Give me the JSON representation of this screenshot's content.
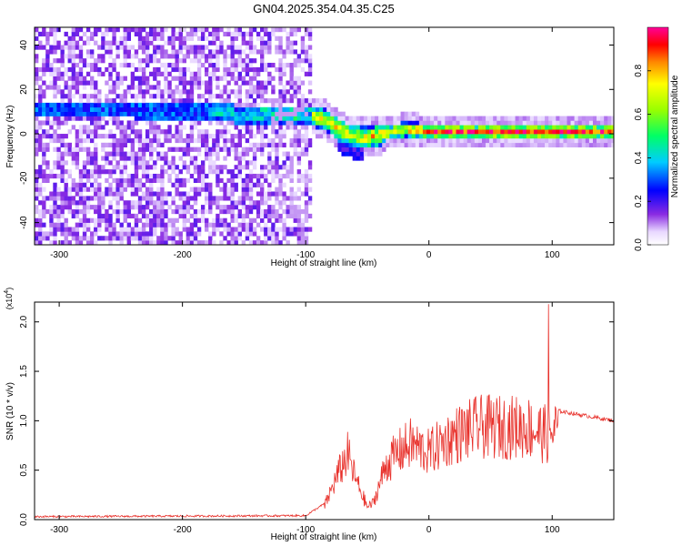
{
  "title": "GN04.2025.354.04.35.C25",
  "chart_data": [
    {
      "type": "heatmap",
      "xlabel": "Height of straight line (km)",
      "ylabel": "Frequency (Hz)",
      "xlim": [
        -320,
        150
      ],
      "ylim": [
        -50,
        48
      ],
      "xticks": [
        -300,
        -200,
        -100,
        0,
        100
      ],
      "yticks": [
        -40,
        -20,
        0,
        20,
        40
      ],
      "colorbar": {
        "label": "Normalized spectral amplitude",
        "range": [
          0,
          1
        ],
        "ticks": [
          0.0,
          0.2,
          0.4,
          0.6,
          0.8
        ]
      },
      "ridge_freq_hz": [
        {
          "x": -240,
          "f": 10
        },
        {
          "x": -200,
          "f": 9
        },
        {
          "x": -160,
          "f": 8
        },
        {
          "x": -120,
          "f": 7
        },
        {
          "x": -100,
          "f": 8
        },
        {
          "x": -85,
          "f": 5
        },
        {
          "x": -70,
          "f": -1
        },
        {
          "x": -55,
          "f": -3
        },
        {
          "x": -40,
          "f": -1
        },
        {
          "x": -20,
          "f": 1
        },
        {
          "x": 0,
          "f": 0
        },
        {
          "x": 50,
          "f": 0
        },
        {
          "x": 100,
          "f": 0
        },
        {
          "x": 150,
          "f": 0
        }
      ],
      "grid": false
    },
    {
      "type": "line",
      "xlabel": "Height of straight line (km)",
      "ylabel": "SNR (10 * v/v)",
      "y_multiplier": "(x10",
      "y_multiplier_exp": "4",
      "xlim": [
        -320,
        150
      ],
      "ylim": [
        0,
        2.2
      ],
      "xticks": [
        -300,
        -200,
        -100,
        0,
        100
      ],
      "yticks": [
        0.0,
        0.5,
        1.0,
        1.5,
        2.0
      ],
      "series": [
        {
          "color": "#e8302a",
          "envelope": [
            {
              "x": -320,
              "y": 0.02
            },
            {
              "x": -100,
              "y": 0.03
            },
            {
              "x": -85,
              "y": 0.15
            },
            {
              "x": -75,
              "y": 0.5
            },
            {
              "x": -66,
              "y": 0.78
            },
            {
              "x": -60,
              "y": 0.5
            },
            {
              "x": -50,
              "y": 0.15
            },
            {
              "x": -45,
              "y": 0.2
            },
            {
              "x": -35,
              "y": 0.65
            },
            {
              "x": -25,
              "y": 0.8
            },
            {
              "x": -15,
              "y": 0.9
            },
            {
              "x": 0,
              "y": 0.8
            },
            {
              "x": 20,
              "y": 1.0
            },
            {
              "x": 40,
              "y": 1.1
            },
            {
              "x": 60,
              "y": 1.1
            },
            {
              "x": 80,
              "y": 1.1
            },
            {
              "x": 97,
              "y": 1.0
            },
            {
              "x": 105,
              "y": 1.1
            },
            {
              "x": 150,
              "y": 1.0
            }
          ],
          "peak": {
            "x": 97,
            "y": 2.18
          }
        }
      ],
      "grid": false
    }
  ]
}
